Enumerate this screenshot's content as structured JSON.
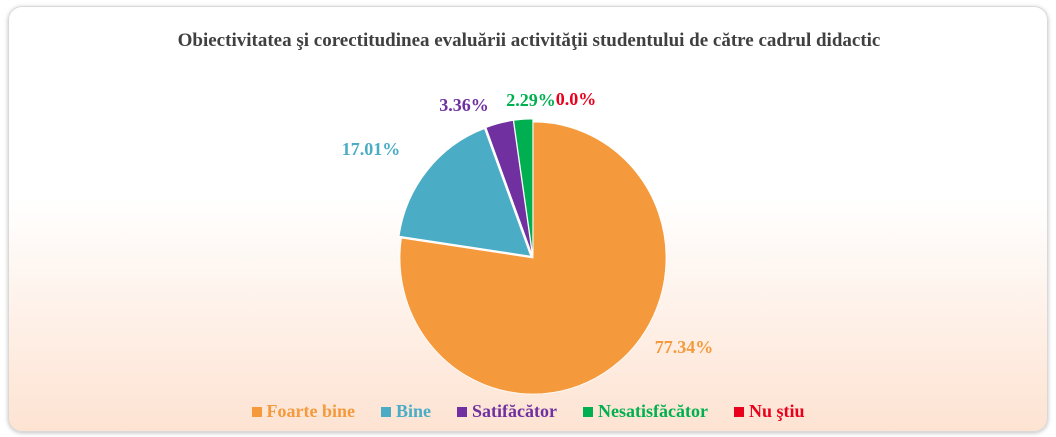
{
  "chart_data": {
    "type": "pie",
    "title": "Obiectivitatea şi corectitudinea evaluării activităţii studentului de către cadrul didactic",
    "categories": [
      "Foarte bine",
      "Bine",
      "Satifăcător",
      "Nesatisfăcător",
      "Nu ştiu"
    ],
    "values": [
      77.34,
      17.01,
      3.36,
      2.29,
      0
    ],
    "value_labels": [
      "77.34%",
      "17.01%",
      "3.36%",
      "2.29%",
      "0.0%"
    ],
    "colors": [
      "#f59a3c",
      "#4bacc6",
      "#7030a0",
      "#00b050",
      "#e8001c"
    ],
    "legend": "bottom"
  }
}
